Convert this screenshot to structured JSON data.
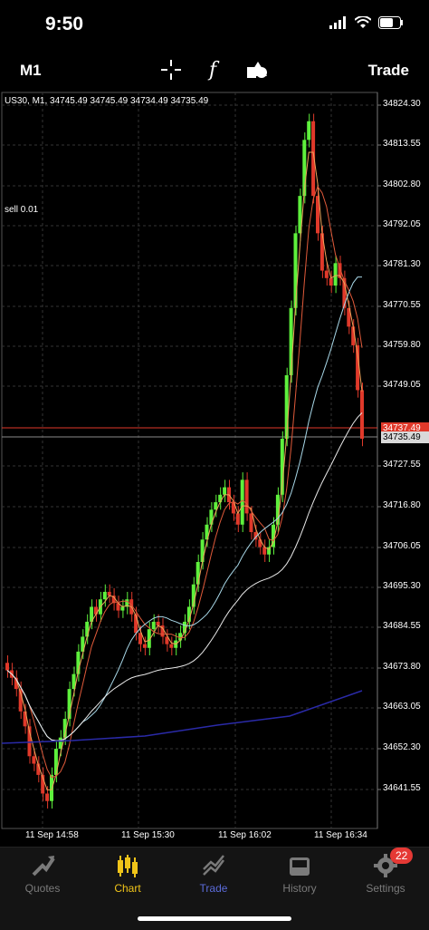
{
  "status": {
    "time": "9:50"
  },
  "toolbar": {
    "timeframe": "M1",
    "trade_label": "Trade",
    "tools": [
      "crosshair-icon",
      "function-icon",
      "objects-icon"
    ]
  },
  "chart": {
    "info_line": "US30, M1, 34745.49 34745.49 34734.49 34735.49",
    "order_label": "sell 0.01",
    "y_ticks": [
      "34824.30",
      "34813.55",
      "34802.80",
      "34792.05",
      "34781.30",
      "34770.55",
      "34759.80",
      "34749.05",
      "34727.55",
      "34716.80",
      "34706.05",
      "34695.30",
      "34684.55",
      "34673.80",
      "34663.05",
      "34652.30",
      "34641.55"
    ],
    "ask_price": "34737.49",
    "bid_price": "34735.49",
    "x_ticks": [
      "11 Sep 14:58",
      "11 Sep 15:30",
      "11 Sep 16:02",
      "11 Sep 16:34"
    ],
    "colors": {
      "bull": "#5ef03c",
      "bear": "#e0392a",
      "ask_line": "#e0392a",
      "bid_line": "#8a8a8a",
      "ma_fast": "#f0a35a",
      "ma_mid": "#e05a3a",
      "ma_slow": "#a8d8e8",
      "ma_long": "#e8e8e8",
      "ma_xlong": "#2a2aa8"
    }
  },
  "tabs": [
    {
      "label": "Quotes",
      "icon": "quotes-icon",
      "active": false
    },
    {
      "label": "Chart",
      "icon": "chart-icon",
      "active": true
    },
    {
      "label": "Trade",
      "icon": "trade-icon",
      "active": false
    },
    {
      "label": "History",
      "icon": "history-icon",
      "active": false
    },
    {
      "label": "Settings",
      "icon": "settings-icon",
      "active": false,
      "badge": "22"
    }
  ]
}
